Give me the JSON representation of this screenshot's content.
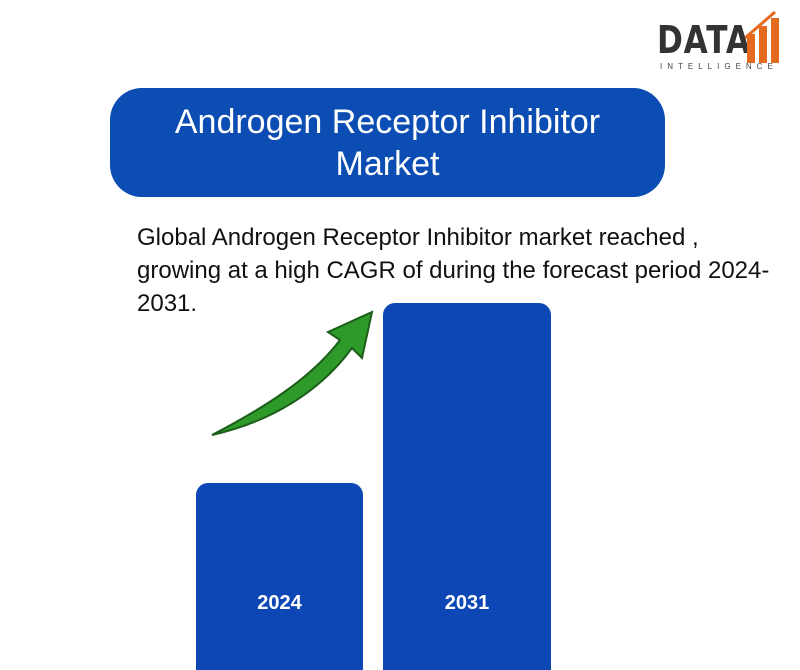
{
  "logo": {
    "name": "DATA",
    "tagline": "INTELLIGENCE"
  },
  "title": "Androgen Receptor Inhibitor Market",
  "description": "Global Androgen Receptor Inhibitor market reached , growing at a high CAGR of during the forecast period 2024-2031.",
  "bars": [
    {
      "label": "2024"
    },
    {
      "label": "2031"
    }
  ]
}
